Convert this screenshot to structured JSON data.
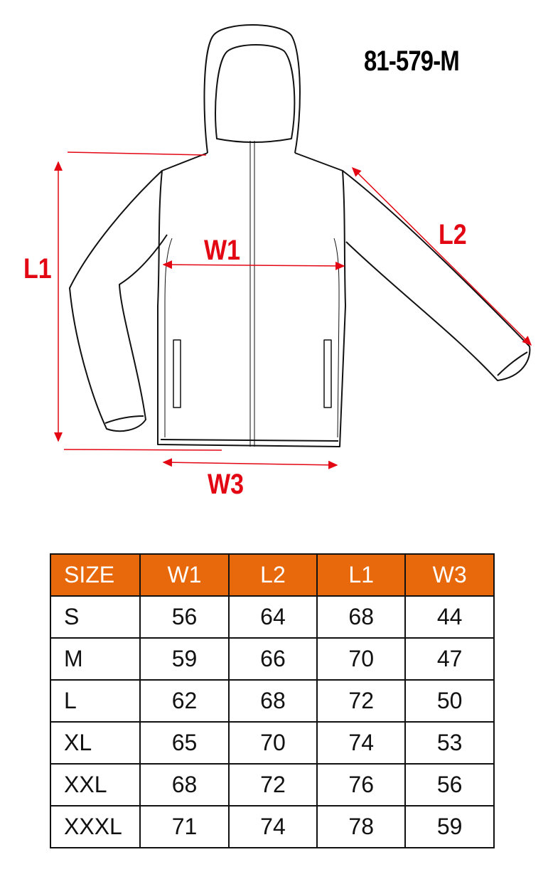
{
  "product_code": "81-579-M",
  "measure_labels": {
    "l1": "L1",
    "l2": "L2",
    "w1": "W1",
    "w3": "W3"
  },
  "colors": {
    "header": "#e8690b",
    "arrows": "#e30613"
  },
  "table": {
    "headers": [
      "SIZE",
      "W1",
      "L2",
      "L1",
      "W3"
    ],
    "rows": [
      [
        "S",
        "56",
        "64",
        "68",
        "44"
      ],
      [
        "M",
        "59",
        "66",
        "70",
        "47"
      ],
      [
        "L",
        "62",
        "68",
        "72",
        "50"
      ],
      [
        "XL",
        "65",
        "70",
        "74",
        "53"
      ],
      [
        "XXL",
        "68",
        "72",
        "76",
        "56"
      ],
      [
        "XXXL",
        "71",
        "74",
        "78",
        "59"
      ]
    ]
  }
}
